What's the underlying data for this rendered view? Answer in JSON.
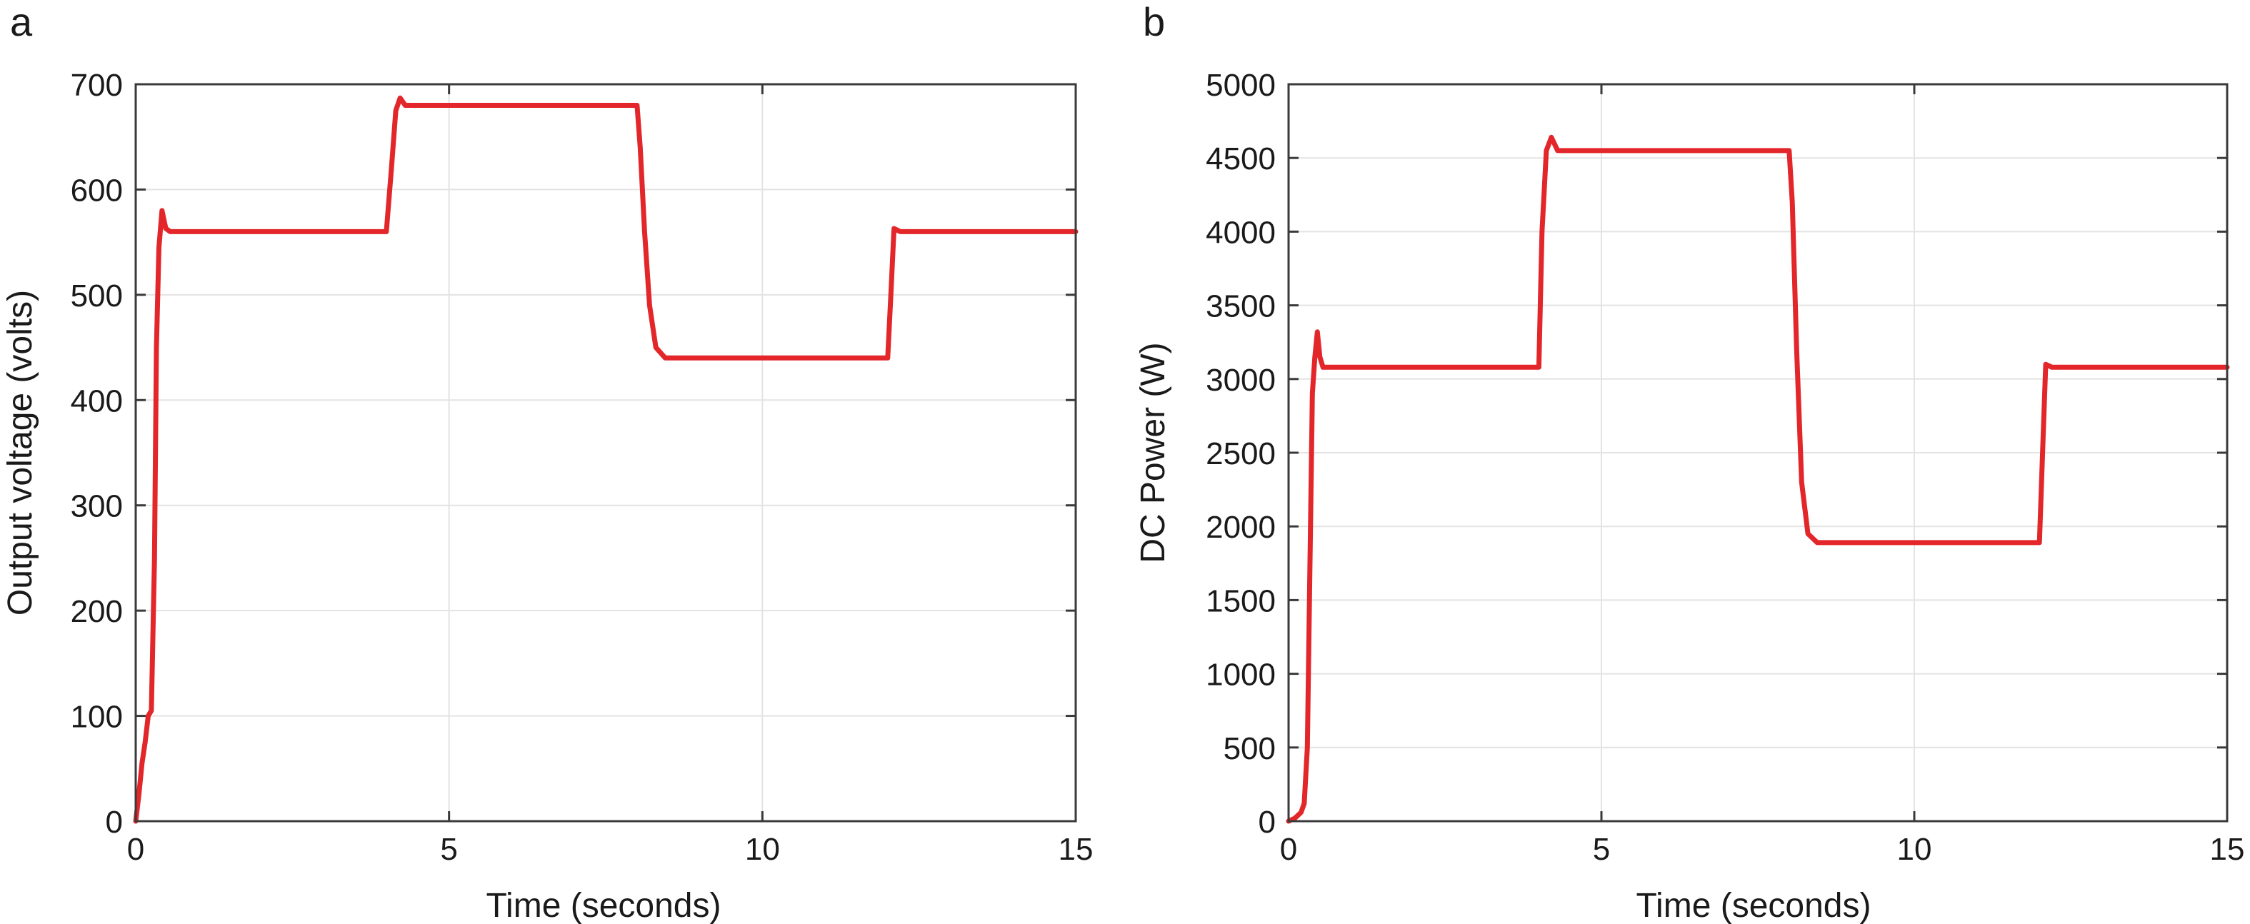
{
  "chart_data": [
    {
      "type": "line",
      "panel_label": "a",
      "xlabel": "Time (seconds)",
      "ylabel": "Output voltage (volts)",
      "xlim": [
        0,
        15
      ],
      "ylim": [
        0,
        700
      ],
      "xticks": [
        0,
        5,
        10,
        15
      ],
      "yticks": [
        0,
        100,
        200,
        300,
        400,
        500,
        600,
        700
      ],
      "grid": true,
      "series": [
        {
          "color": "#e3262a",
          "x": [
            0,
            0.05,
            0.1,
            0.15,
            0.2,
            0.25,
            0.3,
            0.33,
            0.37,
            0.42,
            0.48,
            0.55,
            0.65,
            4.0,
            4.08,
            4.15,
            4.22,
            4.3,
            4.5,
            8.0,
            8.05,
            8.12,
            8.2,
            8.3,
            8.45,
            8.7,
            12.0,
            12.05,
            12.1,
            12.2,
            15.0
          ],
          "y": [
            0,
            25,
            55,
            75,
            100,
            105,
            250,
            450,
            545,
            580,
            563,
            560,
            560,
            560,
            620,
            675,
            687,
            680,
            680,
            680,
            640,
            560,
            490,
            450,
            440,
            440,
            440,
            500,
            563,
            560,
            560
          ]
        }
      ]
    },
    {
      "type": "line",
      "panel_label": "b",
      "xlabel": "Time (seconds)",
      "ylabel": "DC Power (W)",
      "xlim": [
        0,
        15
      ],
      "ylim": [
        0,
        5000
      ],
      "xticks": [
        0,
        5,
        10,
        15
      ],
      "yticks": [
        0,
        500,
        1000,
        1500,
        2000,
        2500,
        3000,
        3500,
        4000,
        4500,
        5000
      ],
      "grid": true,
      "series": [
        {
          "color": "#e3262a",
          "x": [
            0,
            0.1,
            0.2,
            0.25,
            0.3,
            0.35,
            0.38,
            0.42,
            0.46,
            0.5,
            0.55,
            0.62,
            4.0,
            4.05,
            4.12,
            4.2,
            4.3,
            4.5,
            8.0,
            8.05,
            8.12,
            8.2,
            8.3,
            8.45,
            8.7,
            12.0,
            12.05,
            12.1,
            12.2,
            15.0
          ],
          "y": [
            0,
            20,
            60,
            120,
            500,
            2000,
            2900,
            3150,
            3320,
            3150,
            3080,
            3080,
            3080,
            4000,
            4550,
            4640,
            4550,
            4550,
            4550,
            4200,
            3200,
            2300,
            1950,
            1890,
            1890,
            1890,
            2500,
            3100,
            3080,
            3080
          ]
        }
      ]
    }
  ]
}
